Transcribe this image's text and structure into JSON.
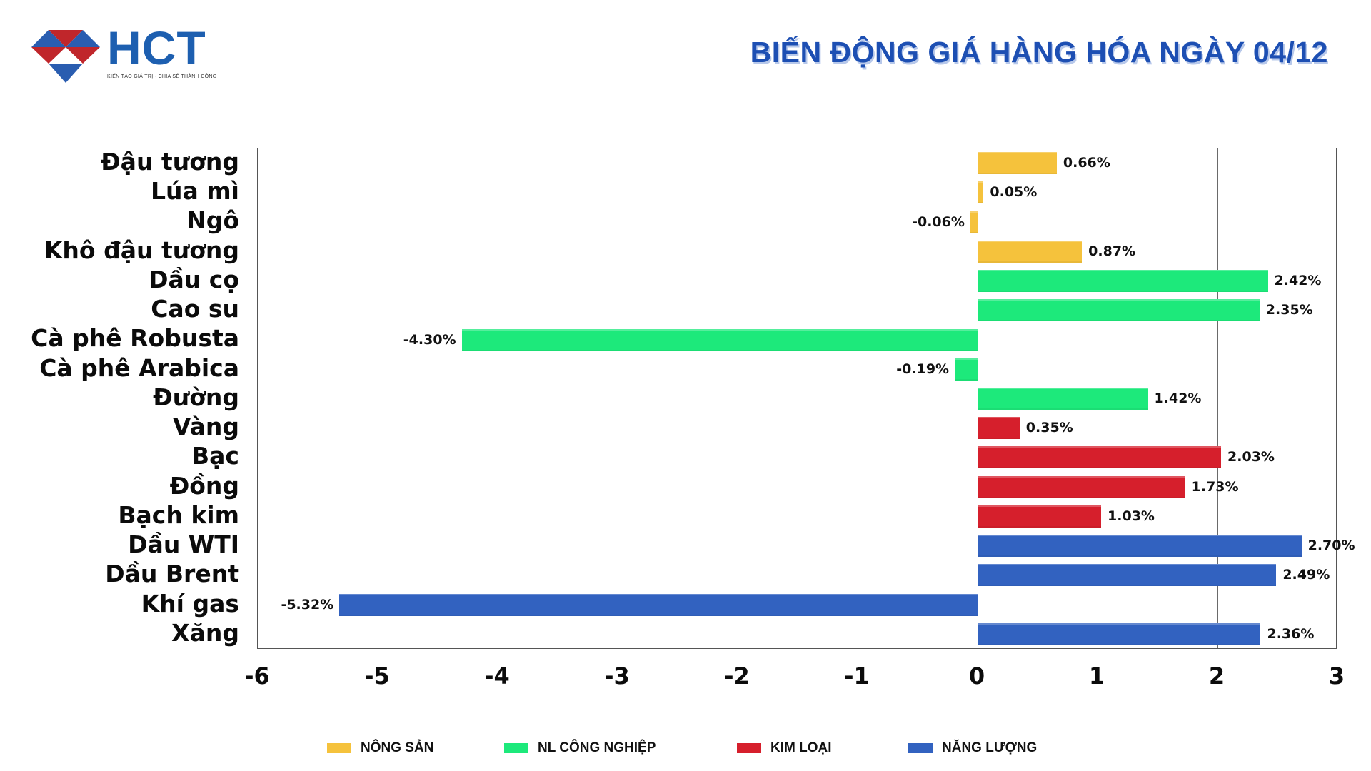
{
  "header": {
    "logo_text": "HCT",
    "logo_tagline": "KIẾN TẠO GIÁ TRỊ - CHIA SẺ THÀNH CÔNG",
    "title": "BIẾN ĐỘNG GIÁ HÀNG HÓA NGÀY 04/12"
  },
  "colors": {
    "nong_san": "#f5c23c",
    "nl_cong_nghiep": "#1de97b",
    "kim_loai": "#d61f2c",
    "nang_luong": "#3262c0",
    "title": "#1d4fb3",
    "logo_blue": "#1d5fb0",
    "logo_red": "#c0262b"
  },
  "legend": [
    {
      "label": "NÔNG SẢN",
      "color": "#f5c23c"
    },
    {
      "label": "NL CÔNG NGHIỆP",
      "color": "#1de97b"
    },
    {
      "label": "KIM LOẠI",
      "color": "#d61f2c"
    },
    {
      "label": "NĂNG LƯỢNG",
      "color": "#3262c0"
    }
  ],
  "chart_data": {
    "type": "bar",
    "orientation": "horizontal",
    "title": "BIẾN ĐỘNG GIÁ HÀNG HÓA NGÀY 04/12",
    "xlabel": "",
    "ylabel": "",
    "xlim": [
      -6,
      3
    ],
    "xticks": [
      "-6",
      "-5",
      "-4",
      "-3",
      "-2",
      "-1",
      "0",
      "1",
      "2",
      "3"
    ],
    "grid": true,
    "legend_position": "bottom",
    "categories": [
      "Đậu tương",
      "Lúa mì",
      "Ngô",
      "Khô đậu tương",
      "Dầu cọ",
      "Cao su",
      "Cà phê Robusta",
      "Cà phê Arabica",
      "Đường",
      "Vàng",
      "Bạc",
      "Đồng",
      "Bạch kim",
      "Dầu WTI",
      "Dầu Brent",
      "Khí gas",
      "Xăng"
    ],
    "values": [
      0.66,
      0.05,
      -0.06,
      0.87,
      2.42,
      2.35,
      -4.3,
      -0.19,
      1.42,
      0.35,
      2.03,
      1.73,
      1.03,
      2.7,
      2.49,
      -5.32,
      2.36
    ],
    "labels": [
      "0.66%",
      "0.05%",
      "-0.06%",
      "0.87%",
      "2.42%",
      "2.35%",
      "-4.30%",
      "-0.19%",
      "1.42%",
      "0.35%",
      "2.03%",
      "1.73%",
      "1.03%",
      "2.70%",
      "2.49%",
      "-5.32%",
      "2.36%"
    ],
    "groups": [
      "NÔNG SẢN",
      "NÔNG SẢN",
      "NÔNG SẢN",
      "NÔNG SẢN",
      "NL CÔNG NGHIỆP",
      "NL CÔNG NGHIỆP",
      "NL CÔNG NGHIỆP",
      "NL CÔNG NGHIỆP",
      "NL CÔNG NGHIỆP",
      "KIM LOẠI",
      "KIM LOẠI",
      "KIM LOẠI",
      "KIM LOẠI",
      "NĂNG LƯỢNG",
      "NĂNG LƯỢNG",
      "NĂNG LƯỢNG",
      "NĂNG LƯỢNG"
    ],
    "series": [
      {
        "name": "NÔNG SẢN",
        "categories": [
          "Đậu tương",
          "Lúa mì",
          "Ngô",
          "Khô đậu tương"
        ],
        "values": [
          0.66,
          0.05,
          -0.06,
          0.87
        ]
      },
      {
        "name": "NL CÔNG NGHIỆP",
        "categories": [
          "Dầu cọ",
          "Cao su",
          "Cà phê Robusta",
          "Cà phê Arabica",
          "Đường"
        ],
        "values": [
          2.42,
          2.35,
          -4.3,
          -0.19,
          1.42
        ]
      },
      {
        "name": "KIM LOẠI",
        "categories": [
          "Vàng",
          "Bạc",
          "Đồng",
          "Bạch kim"
        ],
        "values": [
          0.35,
          2.03,
          1.73,
          1.03
        ]
      },
      {
        "name": "NĂNG LƯỢNG",
        "categories": [
          "Dầu WTI",
          "Dầu Brent",
          "Khí gas",
          "Xăng"
        ],
        "values": [
          2.7,
          2.49,
          -5.32,
          2.36
        ]
      }
    ]
  }
}
